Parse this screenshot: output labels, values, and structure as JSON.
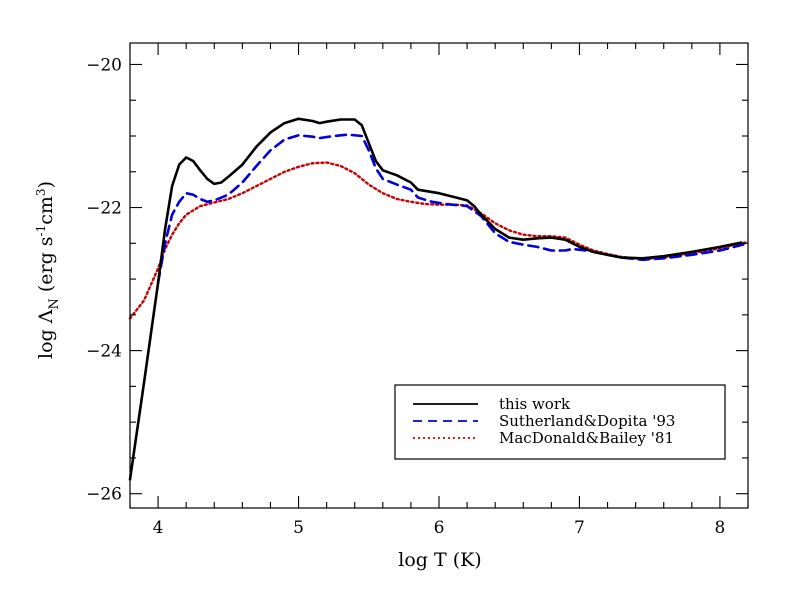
{
  "chart_data": {
    "type": "line",
    "xlabel": "log T (K)",
    "ylabel": {
      "prefix": "log Λ",
      "subscript": "N",
      "units_open": " (erg s",
      "exp1": "-1",
      "units_mid": "cm",
      "exp2": "3",
      "units_close": ")"
    },
    "xlim": [
      3.8,
      8.2
    ],
    "ylim": [
      -26.2,
      -19.7
    ],
    "xticks": [
      {
        "value": 4,
        "label": "4"
      },
      {
        "value": 5,
        "label": "5"
      },
      {
        "value": 6,
        "label": "6"
      },
      {
        "value": 7,
        "label": "7"
      },
      {
        "value": 8,
        "label": "8"
      }
    ],
    "yticks": [
      {
        "value": -26,
        "label": "−26"
      },
      {
        "value": -24,
        "label": "−24"
      },
      {
        "value": -22,
        "label": "−22"
      },
      {
        "value": -20,
        "label": "−20"
      }
    ],
    "legend_position": "lower-right",
    "series": [
      {
        "name": "this work",
        "color": "#000000",
        "style": "solid",
        "points": [
          [
            3.8,
            -25.8
          ],
          [
            3.9,
            -24.45
          ],
          [
            4.0,
            -23.05
          ],
          [
            4.05,
            -22.3
          ],
          [
            4.1,
            -21.7
          ],
          [
            4.15,
            -21.4
          ],
          [
            4.2,
            -21.3
          ],
          [
            4.25,
            -21.35
          ],
          [
            4.3,
            -21.48
          ],
          [
            4.35,
            -21.6
          ],
          [
            4.4,
            -21.67
          ],
          [
            4.45,
            -21.65
          ],
          [
            4.5,
            -21.57
          ],
          [
            4.6,
            -21.4
          ],
          [
            4.7,
            -21.15
          ],
          [
            4.8,
            -20.95
          ],
          [
            4.9,
            -20.82
          ],
          [
            5.0,
            -20.76
          ],
          [
            5.1,
            -20.79
          ],
          [
            5.15,
            -20.82
          ],
          [
            5.2,
            -20.8
          ],
          [
            5.3,
            -20.77
          ],
          [
            5.4,
            -20.77
          ],
          [
            5.45,
            -20.85
          ],
          [
            5.5,
            -21.1
          ],
          [
            5.55,
            -21.35
          ],
          [
            5.6,
            -21.48
          ],
          [
            5.7,
            -21.55
          ],
          [
            5.8,
            -21.65
          ],
          [
            5.85,
            -21.75
          ],
          [
            6.0,
            -21.8
          ],
          [
            6.1,
            -21.85
          ],
          [
            6.2,
            -21.9
          ],
          [
            6.25,
            -21.98
          ],
          [
            6.3,
            -22.1
          ],
          [
            6.4,
            -22.3
          ],
          [
            6.5,
            -22.42
          ],
          [
            6.6,
            -22.45
          ],
          [
            6.7,
            -22.43
          ],
          [
            6.8,
            -22.42
          ],
          [
            6.9,
            -22.45
          ],
          [
            7.0,
            -22.55
          ],
          [
            7.1,
            -22.62
          ],
          [
            7.2,
            -22.66
          ],
          [
            7.3,
            -22.7
          ],
          [
            7.45,
            -22.71
          ],
          [
            7.6,
            -22.68
          ],
          [
            7.8,
            -22.62
          ],
          [
            8.0,
            -22.55
          ],
          [
            8.15,
            -22.49
          ]
        ]
      },
      {
        "name": "Sutherland&Dopita '93",
        "color": "#0000dd",
        "style": "dashed",
        "points": [
          [
            4.0,
            -23.05
          ],
          [
            4.05,
            -22.5
          ],
          [
            4.1,
            -22.1
          ],
          [
            4.15,
            -21.92
          ],
          [
            4.2,
            -21.8
          ],
          [
            4.25,
            -21.82
          ],
          [
            4.3,
            -21.88
          ],
          [
            4.35,
            -21.92
          ],
          [
            4.4,
            -21.9
          ],
          [
            4.5,
            -21.82
          ],
          [
            4.6,
            -21.65
          ],
          [
            4.7,
            -21.42
          ],
          [
            4.8,
            -21.2
          ],
          [
            4.9,
            -21.05
          ],
          [
            5.0,
            -20.99
          ],
          [
            5.1,
            -21.01
          ],
          [
            5.15,
            -21.03
          ],
          [
            5.25,
            -21.0
          ],
          [
            5.35,
            -20.98
          ],
          [
            5.45,
            -21.0
          ],
          [
            5.5,
            -21.2
          ],
          [
            5.55,
            -21.45
          ],
          [
            5.6,
            -21.6
          ],
          [
            5.7,
            -21.68
          ],
          [
            5.8,
            -21.75
          ],
          [
            5.85,
            -21.86
          ],
          [
            5.95,
            -21.92
          ],
          [
            6.05,
            -21.95
          ],
          [
            6.2,
            -21.98
          ],
          [
            6.3,
            -22.12
          ],
          [
            6.4,
            -22.36
          ],
          [
            6.5,
            -22.48
          ],
          [
            6.6,
            -22.52
          ],
          [
            6.7,
            -22.55
          ],
          [
            6.8,
            -22.6
          ],
          [
            6.9,
            -22.6
          ],
          [
            6.95,
            -22.58
          ],
          [
            7.05,
            -22.6
          ],
          [
            7.15,
            -22.64
          ],
          [
            7.3,
            -22.7
          ],
          [
            7.45,
            -22.73
          ],
          [
            7.6,
            -22.71
          ],
          [
            7.8,
            -22.66
          ],
          [
            8.0,
            -22.6
          ],
          [
            8.2,
            -22.5
          ]
        ]
      },
      {
        "name": "MacDonald&Bailey '81",
        "color": "#cc0000",
        "style": "dotted",
        "points": [
          [
            3.8,
            -23.55
          ],
          [
            3.9,
            -23.3
          ],
          [
            4.0,
            -22.85
          ],
          [
            4.05,
            -22.58
          ],
          [
            4.1,
            -22.38
          ],
          [
            4.15,
            -22.22
          ],
          [
            4.2,
            -22.1
          ],
          [
            4.3,
            -21.98
          ],
          [
            4.4,
            -21.93
          ],
          [
            4.5,
            -21.88
          ],
          [
            4.6,
            -21.8
          ],
          [
            4.7,
            -21.7
          ],
          [
            4.8,
            -21.6
          ],
          [
            4.9,
            -21.5
          ],
          [
            5.0,
            -21.43
          ],
          [
            5.1,
            -21.38
          ],
          [
            5.2,
            -21.37
          ],
          [
            5.3,
            -21.42
          ],
          [
            5.4,
            -21.52
          ],
          [
            5.5,
            -21.68
          ],
          [
            5.6,
            -21.8
          ],
          [
            5.7,
            -21.88
          ],
          [
            5.8,
            -21.92
          ],
          [
            5.9,
            -21.95
          ],
          [
            6.0,
            -21.96
          ],
          [
            6.1,
            -21.96
          ],
          [
            6.2,
            -21.97
          ],
          [
            6.3,
            -22.08
          ],
          [
            6.4,
            -22.22
          ],
          [
            6.5,
            -22.32
          ],
          [
            6.6,
            -22.38
          ],
          [
            6.7,
            -22.4
          ],
          [
            6.8,
            -22.4
          ],
          [
            6.9,
            -22.42
          ],
          [
            7.0,
            -22.52
          ],
          [
            7.1,
            -22.6
          ],
          [
            7.2,
            -22.65
          ],
          [
            7.3,
            -22.69
          ],
          [
            7.45,
            -22.72
          ],
          [
            7.6,
            -22.7
          ],
          [
            7.8,
            -22.64
          ],
          [
            8.0,
            -22.57
          ],
          [
            8.2,
            -22.48
          ]
        ]
      }
    ]
  }
}
